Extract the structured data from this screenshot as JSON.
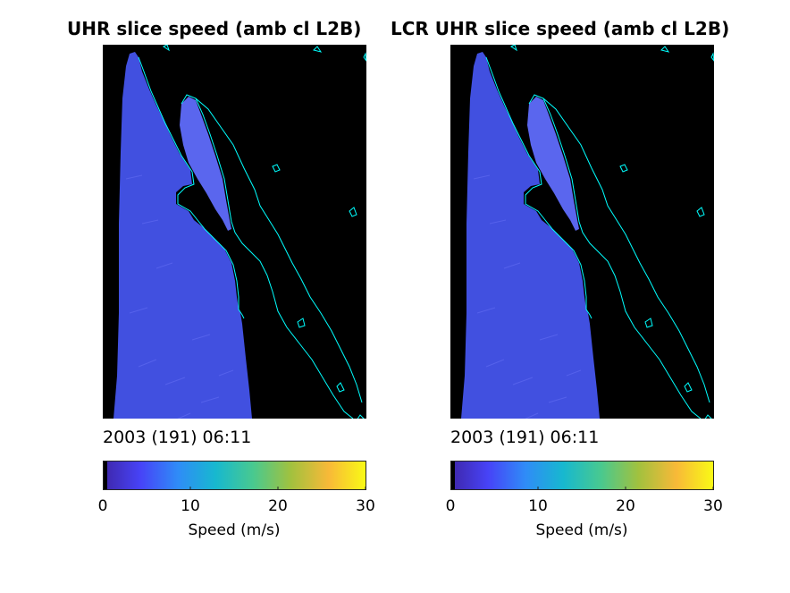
{
  "panels": [
    {
      "title": "UHR slice speed (amb cl L2B)",
      "timestamp": "2003 (191) 06:11",
      "colorbar_label": "Speed (m/s)",
      "colorbar_ticks": [
        "0",
        "10",
        "20",
        "30"
      ]
    },
    {
      "title": "LCR UHR slice speed (amb cl L2B)",
      "timestamp": "2003 (191) 06:11",
      "colorbar_label": "Speed (m/s)",
      "colorbar_ticks": [
        "0",
        "10",
        "20",
        "30"
      ]
    }
  ],
  "colors": {
    "background": "#000000",
    "swath": "#4150e0",
    "swath_light": "#5a66ee",
    "coastline": "#00ffff",
    "colormap": [
      "#000000",
      "#3e26a8",
      "#4743f7",
      "#2f8cf7",
      "#17b8cf",
      "#49c98f",
      "#a2c13e",
      "#f8b938",
      "#f9fb15"
    ]
  },
  "chart_data": [
    {
      "type": "heatmap",
      "title": "UHR slice speed (amb cl L2B)",
      "colorbar": {
        "label": "Speed (m/s)",
        "range": [
          0,
          30
        ],
        "ticks": [
          0,
          10,
          20,
          30
        ],
        "colormap": "parula"
      },
      "annotation": "2003 (191) 06:11"
    },
    {
      "type": "heatmap",
      "title": "LCR UHR slice speed (amb cl L2B)",
      "colorbar": {
        "label": "Speed (m/s)",
        "range": [
          0,
          30
        ],
        "ticks": [
          0,
          10,
          20,
          30
        ],
        "colormap": "parula"
      },
      "annotation": "2003 (191) 06:11"
    }
  ]
}
